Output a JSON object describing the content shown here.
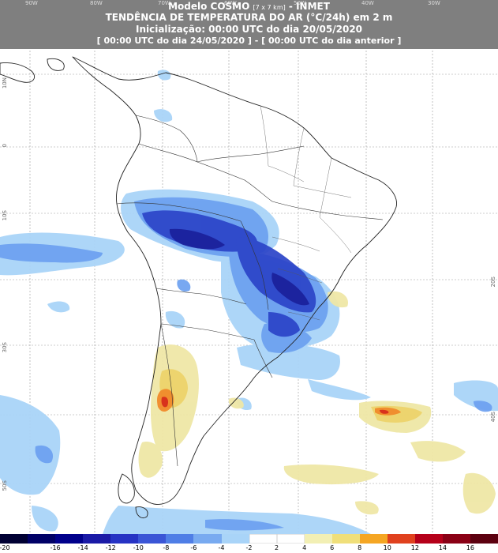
{
  "header": {
    "line1_main": "Modelo COSMO",
    "line1_small": "[7 x 7 km]",
    "line1_tail": "- INMET",
    "line2": "TENDÊNCIA DE TEMPERATURA DO AR (°C/24h) em 2 m",
    "line3": "Inicialização: 00:00 UTC do dia 20/05/2020",
    "line4": "[ 00:00 UTC do dia 24/05/2020 ] - [ 00:00 UTC do dia anterior ]",
    "background_color": "#7f7f7f"
  },
  "longitude_ticks": [
    "90W",
    "80W",
    "70W",
    "60W",
    "50W",
    "40W",
    "30W"
  ],
  "latitude_ticks": [
    "10N",
    "0",
    "10S",
    "20S",
    "30S",
    "40S",
    "50S"
  ],
  "colorbar": {
    "labels": [
      "-20",
      "-16",
      "-14",
      "-12",
      "-10",
      "-8",
      "-6",
      "-4",
      "-2",
      "2",
      "4",
      "6",
      "8",
      "10",
      "12",
      "14",
      "16"
    ],
    "colors": [
      "#000033",
      "#000066",
      "#00008b",
      "#1a1aa6",
      "#2633c4",
      "#3a55d6",
      "#4f7ee6",
      "#78aaf0",
      "#a9d4f8",
      "#ffffff",
      "#ffffff",
      "#f2efb4",
      "#f0df7a",
      "#f5a623",
      "#e0411e",
      "#b5001a",
      "#8a0015",
      "#5c000f"
    ]
  }
}
